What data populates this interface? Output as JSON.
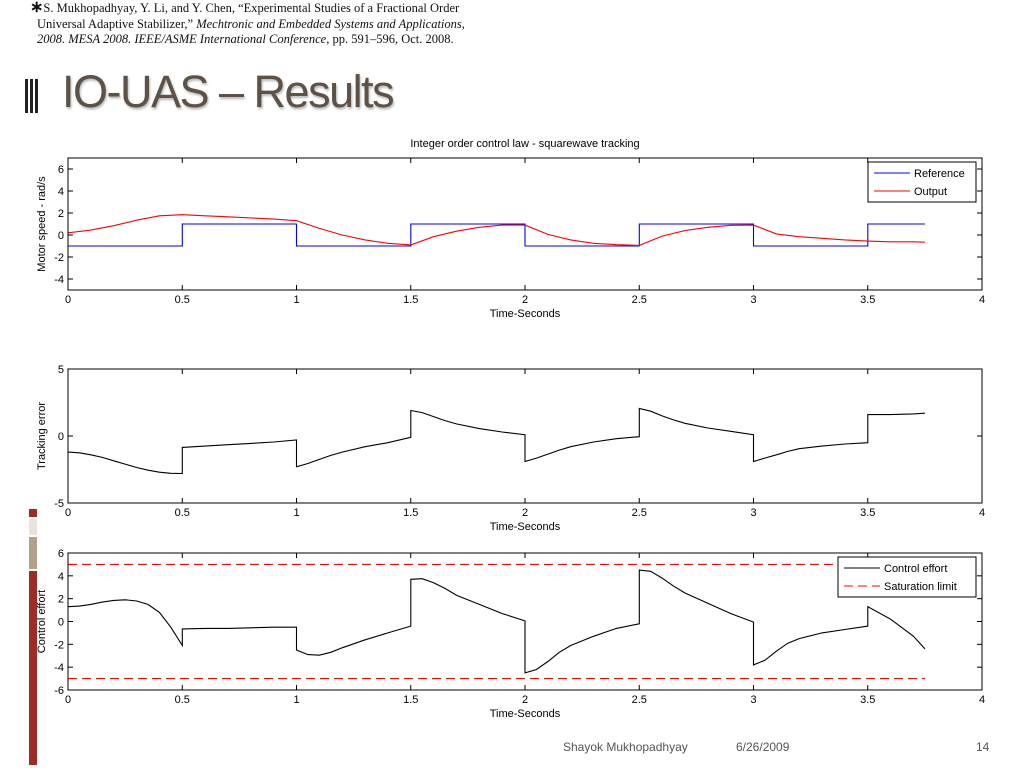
{
  "citation": {
    "marker": "∗",
    "line1": "S. Mukhopadhyay, Y. Li, and Y. Chen, “Experimental Studies of a Fractional Order",
    "line2_plain": "Universal Adaptive Stabilizer,” ",
    "line2_italic": "Mechtronic and Embedded Systems and Applications,",
    "line3_italic": "2008. MESA 2008. IEEE/ASME International Conference",
    "line3_plain": ", pp. 591–596, Oct. 2008."
  },
  "slide_title": "IO-UAS – Results",
  "footer": {
    "author": "Shayok Mukhopadhyay",
    "date": "6/26/2009",
    "page": "14"
  },
  "colors": {
    "reference": "#0000ff",
    "output": "#ff0000",
    "black": "#000000",
    "saturation": "#ff0000",
    "title": "#5e5146",
    "accent_red": "#9e2b25",
    "accent_tan": "#b3a289"
  },
  "chart_data": [
    {
      "type": "line",
      "title": "Integer order control law - squarewave tracking",
      "xlabel": "Time-Seconds",
      "ylabel": "Motor speed - rad/s",
      "xlim": [
        0,
        4
      ],
      "ylim": [
        -5,
        7
      ],
      "xticks": [
        "0",
        "0.5",
        "1",
        "1.5",
        "2",
        "2.5",
        "3",
        "3.5",
        "4"
      ],
      "yticks": [
        "6",
        "4",
        "2",
        "0",
        "-2",
        "-4"
      ],
      "legend_position": "top-right",
      "series": [
        {
          "name": "Reference",
          "color": "#0000ff",
          "style": "solid",
          "x": [
            0,
            0.5,
            0.5,
            1,
            1,
            1.5,
            1.5,
            2,
            2,
            2.5,
            2.5,
            3,
            3,
            3.5,
            3.5,
            3.75
          ],
          "y": [
            -1,
            -1,
            1,
            1,
            -1,
            -1,
            1,
            1,
            -1,
            -1,
            1,
            1,
            -1,
            -1,
            1,
            1
          ]
        },
        {
          "name": "Output",
          "color": "#ff0000",
          "style": "solid",
          "x": [
            0,
            0.1,
            0.2,
            0.3,
            0.4,
            0.5,
            0.6,
            0.7,
            0.8,
            0.9,
            1.0,
            1.1,
            1.2,
            1.3,
            1.4,
            1.5,
            1.6,
            1.7,
            1.8,
            1.9,
            2.0,
            2.1,
            2.2,
            2.3,
            2.4,
            2.5,
            2.6,
            2.7,
            2.8,
            2.9,
            3.0,
            3.1,
            3.2,
            3.3,
            3.4,
            3.5,
            3.6,
            3.7,
            3.75
          ],
          "y": [
            0.2,
            0.45,
            0.85,
            1.35,
            1.75,
            1.85,
            1.75,
            1.65,
            1.55,
            1.45,
            1.3,
            0.6,
            0.0,
            -0.45,
            -0.75,
            -0.9,
            -0.15,
            0.35,
            0.7,
            0.9,
            0.9,
            0.05,
            -0.45,
            -0.75,
            -0.88,
            -0.95,
            -0.1,
            0.4,
            0.7,
            0.88,
            0.9,
            0.1,
            -0.15,
            -0.3,
            -0.45,
            -0.55,
            -0.62,
            -0.62,
            -0.65
          ]
        }
      ]
    },
    {
      "type": "line",
      "title": "",
      "xlabel": "Time-Seconds",
      "ylabel": "Tracking error",
      "xlim": [
        0,
        4
      ],
      "ylim": [
        -5,
        5
      ],
      "xticks": [
        "0",
        "0.5",
        "1",
        "1.5",
        "2",
        "2.5",
        "3",
        "3.5",
        "4"
      ],
      "yticks": [
        "5",
        "0",
        "-5"
      ],
      "series": [
        {
          "color": "#000000",
          "style": "solid",
          "x": [
            0,
            0.05,
            0.1,
            0.15,
            0.2,
            0.25,
            0.3,
            0.35,
            0.4,
            0.45,
            0.5,
            0.5,
            0.6,
            0.7,
            0.8,
            0.9,
            1.0,
            1.0,
            1.05,
            1.1,
            1.15,
            1.2,
            1.3,
            1.4,
            1.5,
            1.5,
            1.55,
            1.6,
            1.65,
            1.7,
            1.8,
            1.9,
            2.0,
            2.0,
            2.05,
            2.1,
            2.15,
            2.2,
            2.3,
            2.4,
            2.5,
            2.5,
            2.55,
            2.6,
            2.65,
            2.7,
            2.8,
            2.9,
            3.0,
            3.0,
            3.05,
            3.1,
            3.15,
            3.2,
            3.3,
            3.4,
            3.5,
            3.5,
            3.6,
            3.7,
            3.75
          ],
          "y": [
            -1.2,
            -1.25,
            -1.4,
            -1.6,
            -1.85,
            -2.1,
            -2.35,
            -2.55,
            -2.7,
            -2.78,
            -2.8,
            -0.85,
            -0.75,
            -0.65,
            -0.55,
            -0.45,
            -0.3,
            -2.3,
            -2.05,
            -1.75,
            -1.45,
            -1.2,
            -0.8,
            -0.5,
            -0.1,
            1.9,
            1.75,
            1.45,
            1.15,
            0.9,
            0.55,
            0.3,
            0.1,
            -1.9,
            -1.65,
            -1.35,
            -1.05,
            -0.8,
            -0.45,
            -0.2,
            -0.05,
            2.05,
            1.85,
            1.5,
            1.2,
            0.95,
            0.6,
            0.35,
            0.1,
            -1.9,
            -1.65,
            -1.4,
            -1.15,
            -0.95,
            -0.75,
            -0.6,
            -0.5,
            1.6,
            1.6,
            1.65,
            1.7
          ]
        }
      ]
    },
    {
      "type": "line",
      "title": "",
      "xlabel": "Time-Seconds",
      "ylabel": "Control effort",
      "xlim": [
        0,
        4
      ],
      "ylim": [
        -6,
        6
      ],
      "xticks": [
        "0",
        "0.5",
        "1",
        "1.5",
        "2",
        "2.5",
        "3",
        "3.5",
        "4"
      ],
      "yticks": [
        "6",
        "4",
        "2",
        "0",
        "-2",
        "-4",
        "-6"
      ],
      "legend_position": "top-right",
      "series": [
        {
          "name": "Control effort",
          "color": "#000000",
          "style": "solid",
          "x": [
            0,
            0.05,
            0.1,
            0.15,
            0.2,
            0.25,
            0.3,
            0.35,
            0.4,
            0.45,
            0.5,
            0.5,
            0.6,
            0.7,
            0.8,
            0.9,
            1.0,
            1.0,
            1.05,
            1.1,
            1.15,
            1.2,
            1.3,
            1.4,
            1.5,
            1.5,
            1.55,
            1.6,
            1.65,
            1.7,
            1.8,
            1.9,
            2.0,
            2.0,
            2.05,
            2.1,
            2.15,
            2.2,
            2.3,
            2.4,
            2.5,
            2.5,
            2.55,
            2.6,
            2.65,
            2.7,
            2.8,
            2.9,
            3.0,
            3.0,
            3.05,
            3.1,
            3.15,
            3.2,
            3.3,
            3.4,
            3.5,
            3.5,
            3.6,
            3.7,
            3.75
          ],
          "y": [
            1.3,
            1.35,
            1.5,
            1.7,
            1.85,
            1.9,
            1.8,
            1.5,
            0.8,
            -0.5,
            -2.1,
            -0.65,
            -0.6,
            -0.6,
            -0.55,
            -0.5,
            -0.5,
            -2.5,
            -2.9,
            -2.95,
            -2.7,
            -2.3,
            -1.6,
            -1.0,
            -0.4,
            3.7,
            3.75,
            3.4,
            2.9,
            2.3,
            1.5,
            0.7,
            0.05,
            -4.5,
            -4.2,
            -3.5,
            -2.7,
            -2.1,
            -1.3,
            -0.6,
            -0.2,
            4.5,
            4.4,
            3.8,
            3.1,
            2.5,
            1.6,
            0.7,
            -0.05,
            -3.8,
            -3.4,
            -2.6,
            -1.9,
            -1.5,
            -1.0,
            -0.7,
            -0.4,
            1.3,
            0.2,
            -1.3,
            -2.4
          ]
        },
        {
          "name": "Saturation limit",
          "color": "#ff0000",
          "style": "dashed",
          "x": [
            0,
            3.75
          ],
          "y": [
            5,
            5
          ]
        },
        {
          "name": "",
          "color": "#ff0000",
          "style": "dashed",
          "x": [
            0,
            3.75
          ],
          "y": [
            -5,
            -5
          ]
        }
      ]
    }
  ]
}
